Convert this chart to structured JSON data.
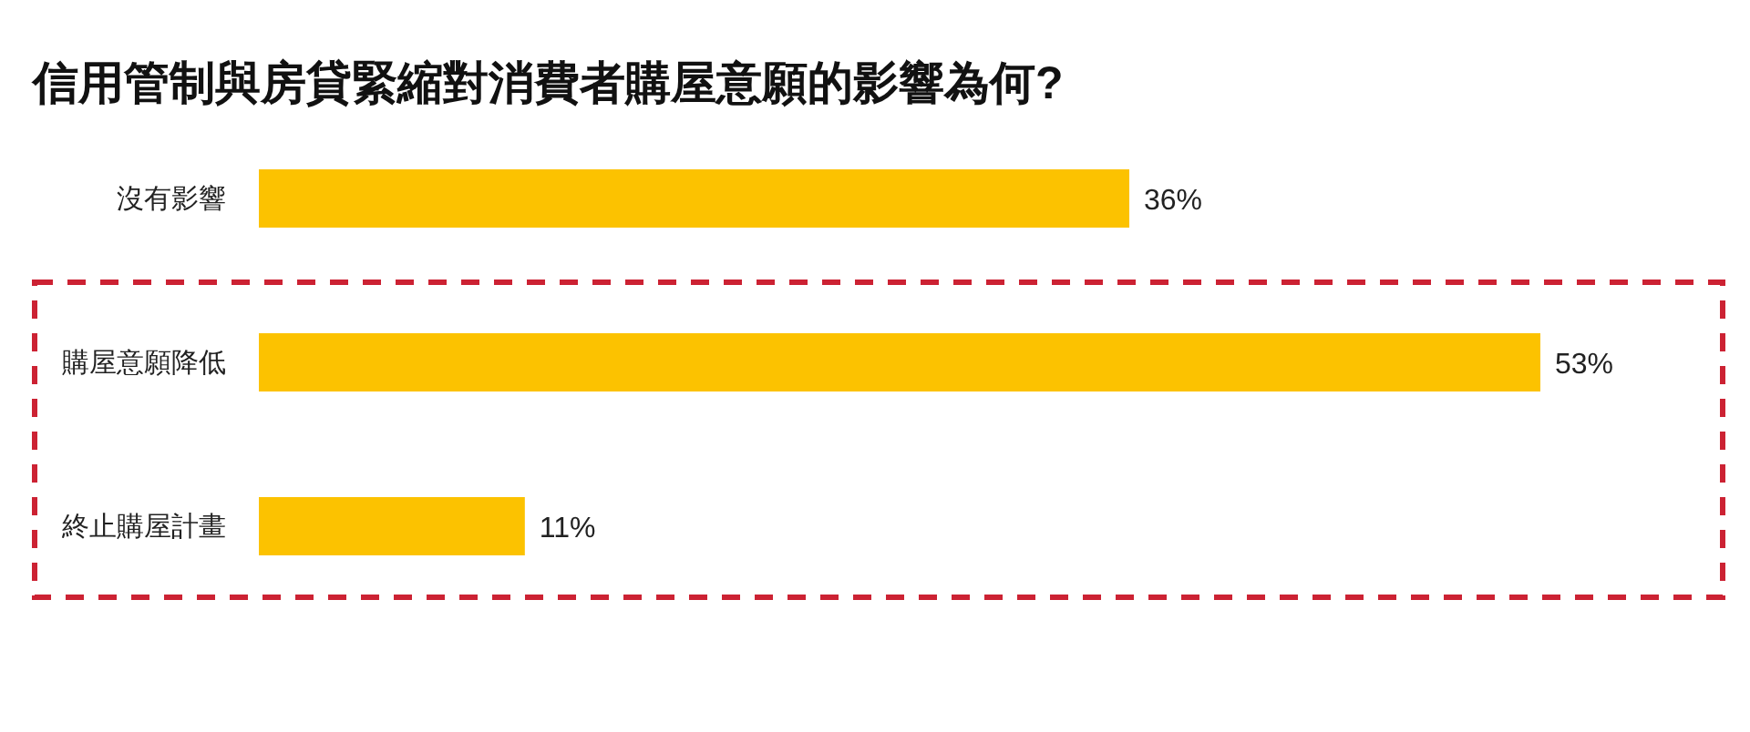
{
  "chart_data": {
    "type": "bar",
    "orientation": "horizontal",
    "title": "信用管制與房貸緊縮對消費者購屋意願的影響為何?",
    "categories": [
      "沒有影響",
      "購屋意願降低",
      "終止購屋計畫"
    ],
    "values": [
      36,
      53,
      11
    ],
    "value_labels": [
      "36%",
      "53%",
      "11%"
    ],
    "color": "#fcc200"
  }
}
